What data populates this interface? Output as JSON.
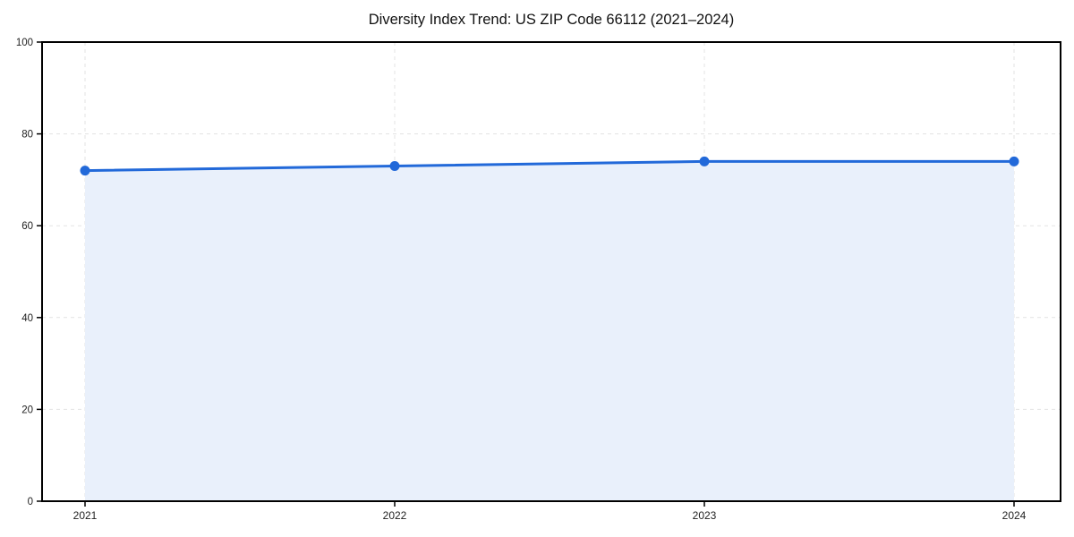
{
  "chart_data": {
    "type": "area",
    "title": "Diversity Index Trend: US ZIP Code 66112 (2021–2024)",
    "categories": [
      "2021",
      "2022",
      "2023",
      "2024"
    ],
    "series": [
      {
        "name": "Diversity Index",
        "values": [
          72,
          73,
          74,
          74
        ]
      }
    ],
    "xlabel": "",
    "ylabel": "",
    "ylim": [
      0,
      100
    ],
    "yticks": [
      0,
      20,
      40,
      60,
      80,
      100
    ],
    "grid": true,
    "grid_style": "dashed",
    "legend_position": "none",
    "marker": "circle",
    "colors": {
      "line": "#2269d9",
      "marker": "#2269d9",
      "fill": "#e9f0fb",
      "grid": "#e3e3e3",
      "axis": "#000000",
      "tick_label": "#222222",
      "title": "#111111",
      "plot_background": "#ffffff",
      "figure_background": "#ffffff"
    }
  }
}
